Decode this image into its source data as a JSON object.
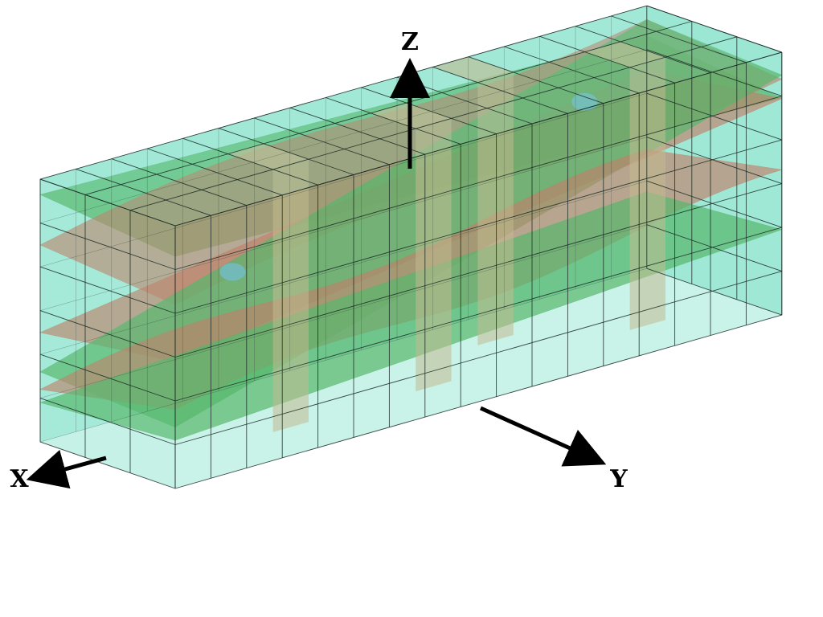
{
  "axes": {
    "x_label": "X",
    "y_label": "Y",
    "z_label": "Z"
  },
  "grid": {
    "x_cells": 3,
    "y_cells": 17,
    "z_cells": 6
  },
  "colors": {
    "box_fill": "#7fe0c8",
    "grid_line": "#1a2a26",
    "orange_cell": "#f4a068",
    "red_surface": "#f03a24",
    "green_surface": "#3a9a2a",
    "blue_spot": "#6aa8e0",
    "axis_arrow": "#000000"
  },
  "orange_columns": [
    {
      "i": 1,
      "j": 4
    },
    {
      "i": 1,
      "j": 8
    },
    {
      "i": 1,
      "j": 14
    },
    {
      "i": 2,
      "j": 11
    }
  ],
  "surfaces": [
    {
      "name": "upper-green-surface",
      "color": "green"
    },
    {
      "name": "upper-red-surface",
      "color": "red"
    },
    {
      "name": "middle-red-surface",
      "color": "red"
    },
    {
      "name": "middle-green-surface",
      "color": "green"
    },
    {
      "name": "lower-red-surface",
      "color": "red"
    },
    {
      "name": "lower-green-surface",
      "color": "green"
    }
  ]
}
